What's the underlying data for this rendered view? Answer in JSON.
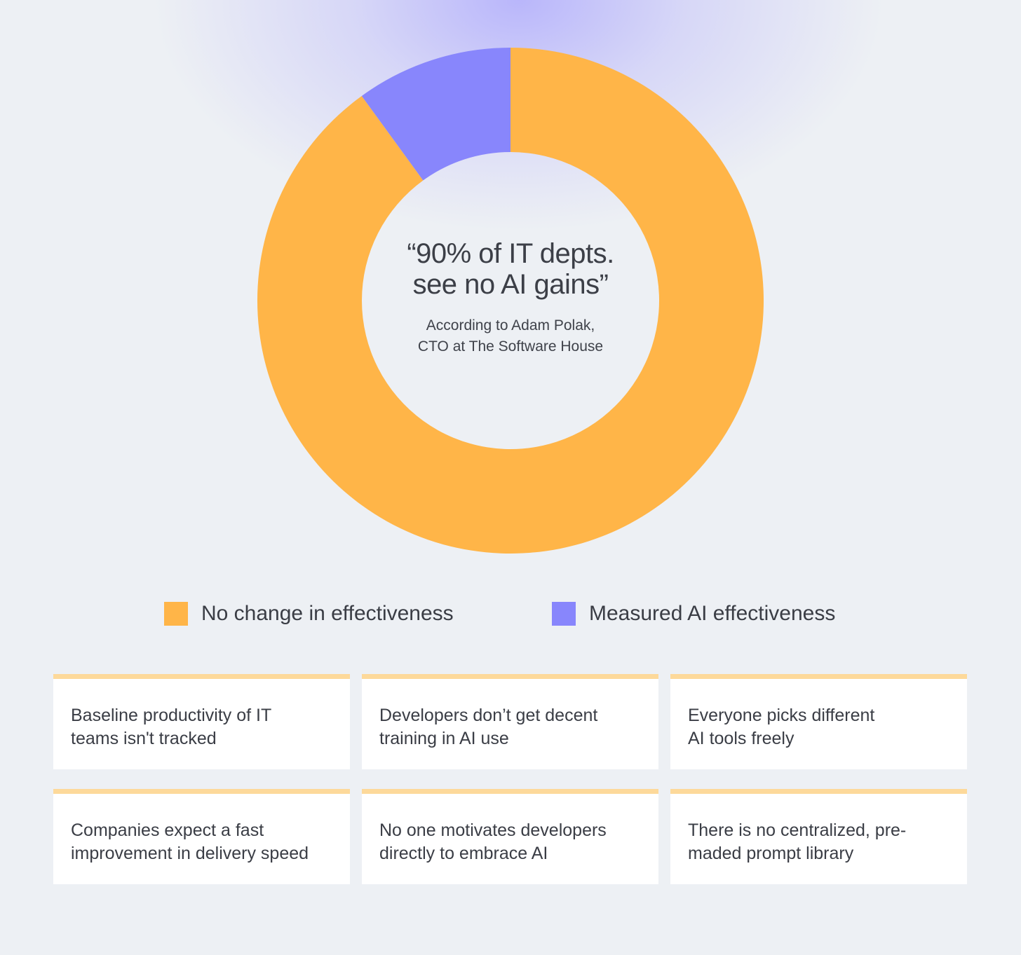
{
  "chart_data": {
    "type": "pie",
    "subtype": "donut",
    "slices": [
      {
        "label": "No change in effectiveness",
        "value": 90,
        "color": "#ffb548"
      },
      {
        "label": "Measured AI effectiveness",
        "value": 10,
        "color": "#8886fc"
      }
    ],
    "center_title": "“90% of IT depts.\nsee no AI gains”",
    "center_subtitle": "According to Adam Polak,\nCTO at The Software House",
    "legend_position": "bottom"
  },
  "legend": [
    {
      "label": "No change in effectiveness",
      "color": "#ffb548"
    },
    {
      "label": "Measured AI effectiveness",
      "color": "#8886fc"
    }
  ],
  "cards": [
    {
      "text": "Baseline productivity of IT\nteams isn't tracked"
    },
    {
      "text": "Developers don’t get decent\ntraining in AI use"
    },
    {
      "text": "Everyone picks different\nAI tools freely"
    },
    {
      "text": "Companies expect a fast\nimprovement in delivery speed"
    },
    {
      "text": "No one motivates developers\ndirectly to embrace AI"
    },
    {
      "text": "There is no centralized, pre-\nmaded prompt library"
    }
  ],
  "colors": {
    "background": "#edf0f4",
    "card_accent": "#fdd99a",
    "orange": "#ffb548",
    "purple": "#8886fc"
  }
}
